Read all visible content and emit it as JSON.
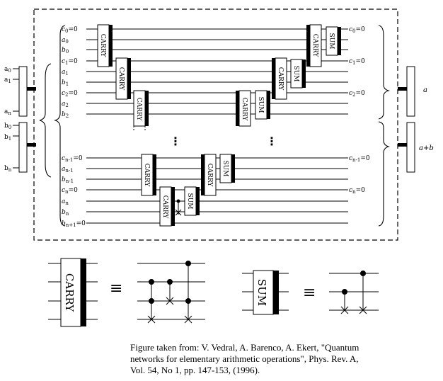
{
  "diagram": {
    "left_inputs": [
      {
        "top": "a",
        "top_sub": "0",
        "mid": "a",
        "mid_sub": "1",
        "bottom": "a",
        "bottom_sub": "n"
      },
      {
        "top": "b",
        "top_sub": "0",
        "mid": "b",
        "mid_sub": "1",
        "bottom": "b",
        "bottom_sub": "n"
      }
    ],
    "right_outputs": [
      "a",
      "a+b"
    ],
    "wire_labels_left": [
      {
        "base": "c",
        "sub": "0",
        "suffix": "=0"
      },
      {
        "base": "a",
        "sub": "0",
        "suffix": ""
      },
      {
        "base": "b",
        "sub": "0",
        "suffix": ""
      },
      {
        "base": "c",
        "sub": "1",
        "suffix": "=0"
      },
      {
        "base": "a",
        "sub": "1",
        "suffix": ""
      },
      {
        "base": "b",
        "sub": "1",
        "suffix": ""
      },
      {
        "base": "c",
        "sub": "2",
        "suffix": "=0"
      },
      {
        "base": "a",
        "sub": "2",
        "suffix": ""
      },
      {
        "base": "b",
        "sub": "2",
        "suffix": ""
      },
      {
        "base": "c",
        "sub": "n-1",
        "suffix": "=0"
      },
      {
        "base": "a",
        "sub": "n-1",
        "suffix": ""
      },
      {
        "base": "b",
        "sub": "n-1",
        "suffix": ""
      },
      {
        "base": "c",
        "sub": "n",
        "suffix": "=0"
      },
      {
        "base": "a",
        "sub": "n",
        "suffix": ""
      },
      {
        "base": "b",
        "sub": "n",
        "suffix": ""
      },
      {
        "base": "b",
        "sub": "n+1",
        "suffix": "=0"
      }
    ],
    "wire_labels_right": [
      {
        "base": "c",
        "sub": "0",
        "suffix": "=0"
      },
      {
        "base": "c",
        "sub": "1",
        "suffix": "=0"
      },
      {
        "base": "c",
        "sub": "2",
        "suffix": "=0"
      },
      {
        "base": "c",
        "sub": "n-1",
        "suffix": "=0"
      },
      {
        "base": "c",
        "sub": "n",
        "suffix": "=0"
      }
    ],
    "gate_carry": "CARRY",
    "gate_sum": "SUM",
    "equiv_symbol": "≡",
    "dots": "⋮"
  },
  "caption": {
    "line1": "Figure taken from: V. Vedral, A. Barenco, A. Ekert, \"Quantum",
    "line2": "networks for elementary arithmetic operations\", Phys. Rev. A,",
    "line3": "Vol. 54, No 1, pp. 147-153, (1996)."
  }
}
